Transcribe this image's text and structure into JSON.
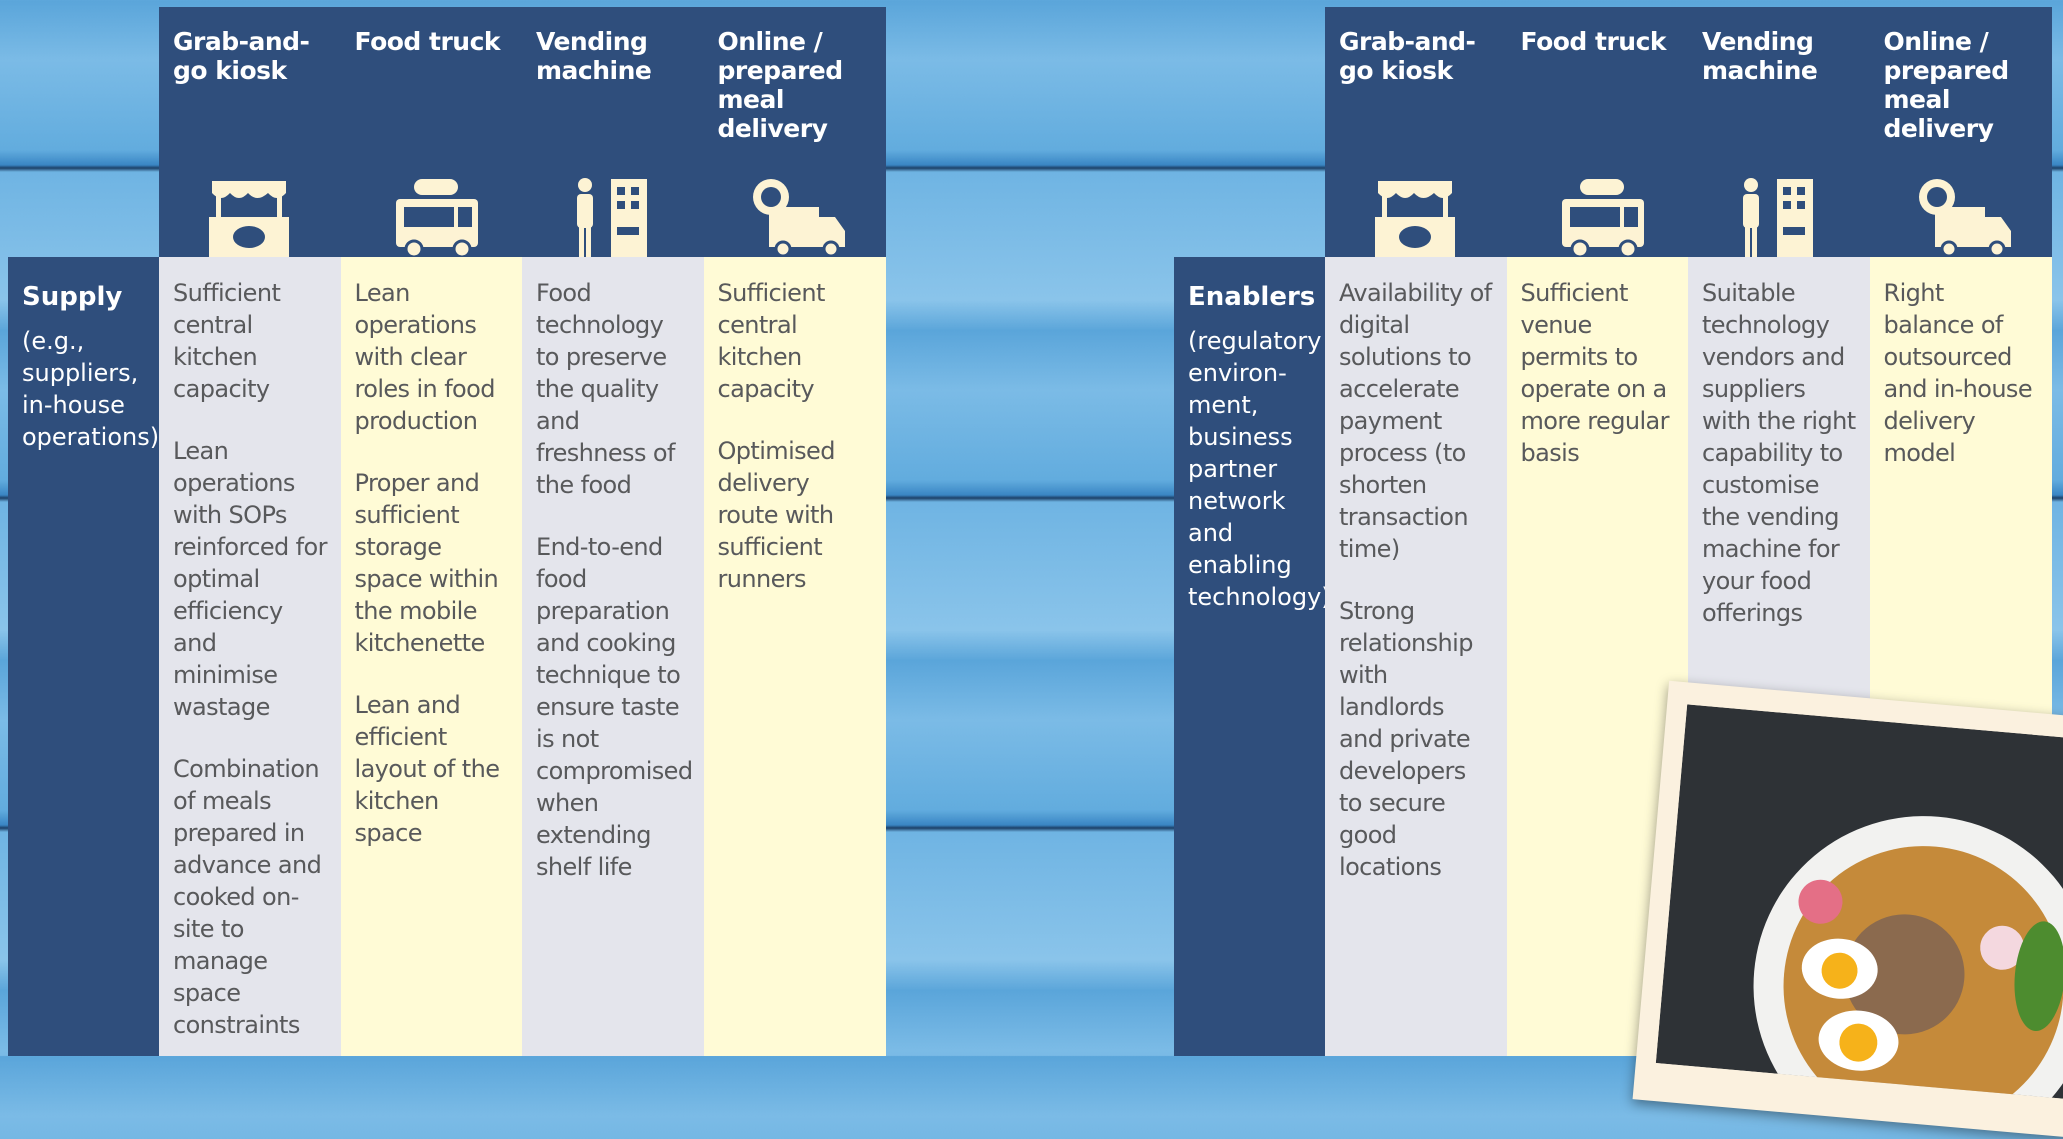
{
  "panels": [
    {
      "label": "Supply",
      "sublabel": "(e.g., suppliers, in-house operations)",
      "columns": [
        {
          "header": "Grab-and-go kiosk",
          "items": [
            "Sufficient central kitchen capacity",
            "Lean operations with SOPs reinforced for optimal efficiency and minimise wastage",
            "Combination of meals prepared in advance and cooked on-site to manage space constraints"
          ]
        },
        {
          "header": "Food truck",
          "items": [
            "Lean operations with clear roles in food production",
            "Proper and sufficient storage space within the mobile kitchenette",
            "Lean and efficient layout of the kitchen space"
          ]
        },
        {
          "header": "Vending machine",
          "items": [
            "Food technology to preserve the quality and freshness of the food",
            "End-to-end food preparation and cooking technique to ensure taste is not compromised when extending shelf life"
          ]
        },
        {
          "header": "Online / prepared meal delivery",
          "items": [
            "Sufficient central kitchen capacity",
            "Optimised delivery route with sufficient runners"
          ]
        }
      ]
    },
    {
      "label": "Enablers",
      "sublabel": "(regulatory environ-ment, business partner network and enabling technology)",
      "columns": [
        {
          "header": "Grab-and-go kiosk",
          "items": [
            "Availability of digital solutions to accelerate payment process (to shorten transaction time)",
            "Strong relationship with landlords and private developers to secure good locations"
          ]
        },
        {
          "header": "Food truck",
          "items": [
            "Sufficient venue permits to operate on a more regular basis"
          ]
        },
        {
          "header": "Vending machine",
          "items": [
            "Suitable technology vendors and suppliers with the right capability to customise the vending machine for your food offerings"
          ]
        },
        {
          "header": "Online / prepared meal delivery",
          "items": [
            "Right balance of outsourced and in-house delivery model"
          ]
        }
      ]
    }
  ]
}
